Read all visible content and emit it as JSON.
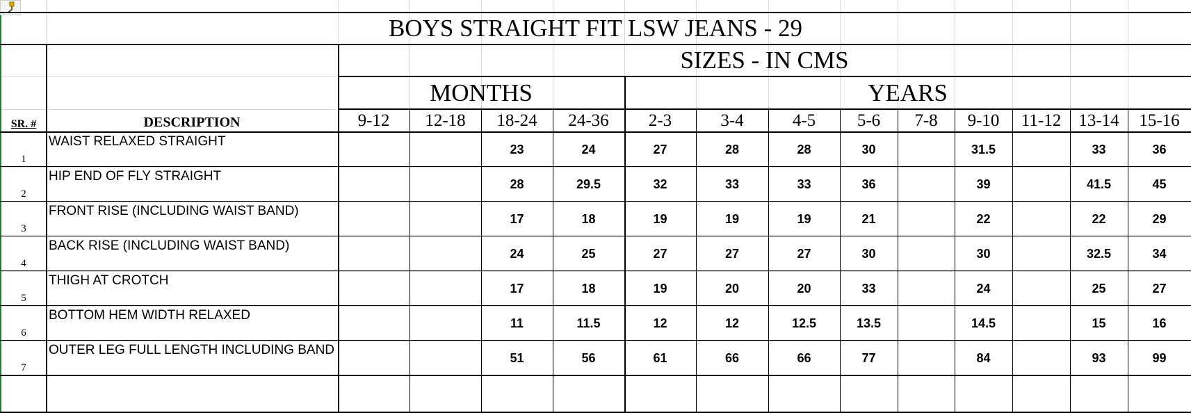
{
  "title": "BOYS STRAIGHT FIT LSW JEANS - 29",
  "sizes_label": "SIZES - IN CMS",
  "groups": {
    "months": "MONTHS",
    "years": "YEARS"
  },
  "headers": {
    "sr": "SR. #",
    "description": "DESCRIPTION"
  },
  "size_columns": [
    "9-12",
    "12-18",
    "18-24",
    "24-36",
    "2-3",
    "3-4",
    "4-5",
    "5-6",
    "7-8",
    "9-10",
    "11-12",
    "13-14",
    "15-16"
  ],
  "rows": [
    {
      "sr": "1",
      "description": "WAIST RELAXED STRAIGHT",
      "values": [
        "",
        "",
        "23",
        "24",
        "27",
        "28",
        "28",
        "30",
        "",
        "31.5",
        "",
        "33",
        "36"
      ]
    },
    {
      "sr": "2",
      "description": "HIP END OF FLY STRAIGHT",
      "values": [
        "",
        "",
        "28",
        "29.5",
        "32",
        "33",
        "33",
        "36",
        "",
        "39",
        "",
        "41.5",
        "45"
      ]
    },
    {
      "sr": "3",
      "description": "FRONT RISE (INCLUDING WAIST BAND)",
      "values": [
        "",
        "",
        "17",
        "18",
        "19",
        "19",
        "19",
        "21",
        "",
        "22",
        "",
        "22",
        "29"
      ]
    },
    {
      "sr": "4",
      "description": "BACK RISE (INCLUDING WAIST BAND)",
      "values": [
        "",
        "",
        "24",
        "25",
        "27",
        "27",
        "27",
        "30",
        "",
        "30",
        "",
        "32.5",
        "34"
      ]
    },
    {
      "sr": "5",
      "description": "THIGH AT CROTCH",
      "values": [
        "",
        "",
        "17",
        "18",
        "19",
        "20",
        "20",
        "33",
        "",
        "24",
        "",
        "25",
        "27"
      ]
    },
    {
      "sr": "6",
      "description": "BOTTOM HEM WIDTH RELAXED",
      "values": [
        "",
        "",
        "11",
        "11.5",
        "12",
        "12",
        "12.5",
        "13.5",
        "",
        "14.5",
        "",
        "15",
        "16"
      ]
    },
    {
      "sr": "7",
      "description": "OUTER LEG FULL LENGTH INCLUDING BAND",
      "values": [
        "",
        "",
        "51",
        "56",
        "61",
        "66",
        "66",
        "77",
        "",
        "84",
        "",
        "93",
        "99"
      ]
    }
  ],
  "icons": {
    "format_painter": "paintbrush-icon"
  }
}
